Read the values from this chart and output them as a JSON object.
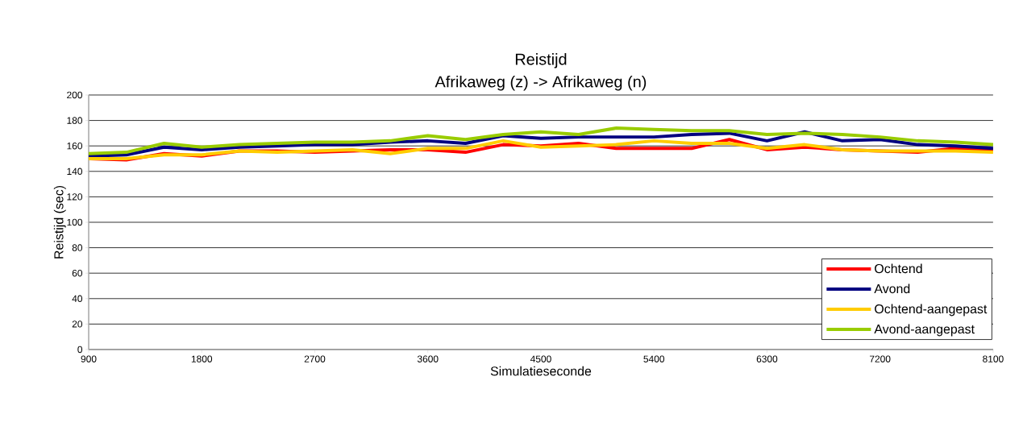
{
  "chart_data": {
    "type": "line",
    "title": "Reistijd",
    "subtitle": "Afrikaweg (z) -> Afrikaweg (n)",
    "xlabel": "Simulatieseconde",
    "ylabel": "Reistijd (sec)",
    "x": [
      900,
      1200,
      1500,
      1800,
      2100,
      2400,
      2700,
      3000,
      3300,
      3600,
      3900,
      4200,
      4500,
      4800,
      5100,
      5400,
      5700,
      6000,
      6300,
      6600,
      6900,
      7200,
      7500,
      7800,
      8100
    ],
    "series": [
      {
        "name": "Ochtend",
        "color": "#ff0000",
        "values": [
          150,
          149,
          154,
          152,
          156,
          156,
          155,
          156,
          157,
          157,
          155,
          161,
          160,
          162,
          158,
          158,
          158,
          165,
          157,
          159,
          157,
          156,
          155,
          158,
          157
        ]
      },
      {
        "name": "Avond",
        "color": "#000080",
        "values": [
          152,
          153,
          159,
          157,
          159,
          160,
          161,
          161,
          163,
          164,
          162,
          168,
          166,
          167,
          167,
          167,
          169,
          170,
          164,
          171,
          164,
          165,
          161,
          160,
          158
        ]
      },
      {
        "name": "Ochtend-aangepast",
        "color": "#ffcc00",
        "values": [
          150,
          150,
          153,
          153,
          156,
          155,
          156,
          157,
          154,
          158,
          158,
          164,
          159,
          160,
          161,
          164,
          162,
          162,
          158,
          161,
          157,
          156,
          156,
          156,
          155
        ]
      },
      {
        "name": "Avond-aangepast",
        "color": "#99cc00",
        "values": [
          154,
          155,
          162,
          159,
          161,
          162,
          163,
          163,
          164,
          168,
          165,
          169,
          171,
          169,
          174,
          173,
          172,
          172,
          169,
          170,
          169,
          167,
          164,
          163,
          161
        ]
      }
    ],
    "xlim": [
      900,
      8100
    ],
    "xticks": [
      900,
      1800,
      2700,
      3600,
      4500,
      5400,
      6300,
      7200,
      8100
    ],
    "ylim": [
      0,
      200
    ],
    "yticks": [
      0,
      20,
      40,
      60,
      80,
      100,
      120,
      140,
      160,
      180,
      200
    ],
    "grid": "y",
    "legend": "bottom right",
    "marker": "none",
    "line_style": "solid"
  }
}
